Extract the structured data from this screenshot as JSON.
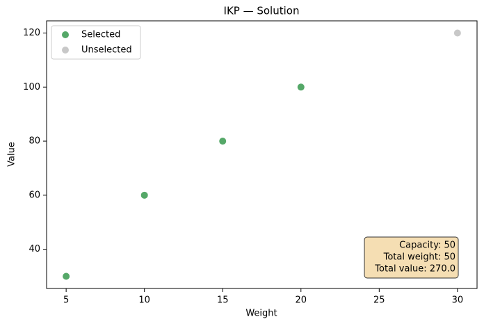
{
  "chart_data": {
    "type": "scatter",
    "title": "IKP — Solution",
    "xlabel": "Weight",
    "ylabel": "Value",
    "series": [
      {
        "name": "Selected",
        "color": "#55a868",
        "x": [
          5,
          10,
          15,
          20
        ],
        "values": [
          30,
          60,
          80,
          100
        ]
      },
      {
        "name": "Unselected",
        "color": "#c8c8c8",
        "x": [
          30
        ],
        "values": [
          120
        ]
      }
    ],
    "xlim": [
      3.75,
      31.25
    ],
    "xticks": [
      5,
      10,
      15,
      20,
      25,
      30
    ],
    "ylim": [
      25.5,
      124.5
    ],
    "yticks": [
      40,
      60,
      80,
      100,
      120
    ],
    "legend": "upper-left",
    "grid": false,
    "annotations": [
      "Capacity: 50",
      "Total weight: 50",
      "Total value: 270.0"
    ]
  }
}
